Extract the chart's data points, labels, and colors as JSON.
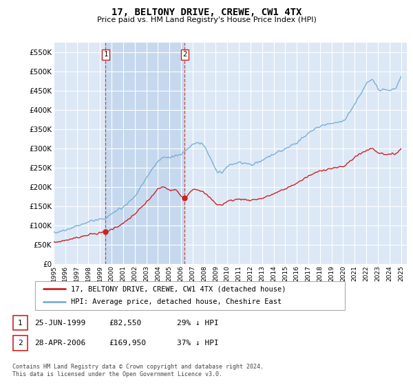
{
  "title": "17, BELTONY DRIVE, CREWE, CW1 4TX",
  "subtitle": "Price paid vs. HM Land Registry's House Price Index (HPI)",
  "ylim": [
    0,
    575000
  ],
  "yticks": [
    0,
    50000,
    100000,
    150000,
    200000,
    250000,
    300000,
    350000,
    400000,
    450000,
    500000,
    550000
  ],
  "ytick_labels": [
    "£0",
    "£50K",
    "£100K",
    "£150K",
    "£200K",
    "£250K",
    "£300K",
    "£350K",
    "£400K",
    "£450K",
    "£500K",
    "£550K"
  ],
  "xlim": [
    1995.0,
    2025.5
  ],
  "plot_bg_color": "#dce8f5",
  "grid_color": "#ffffff",
  "hpi_color": "#7bafd4",
  "price_color": "#cc2222",
  "vline_color": "#cc3333",
  "shade_color": "#c5d8ee",
  "sale1_year": 1999.48,
  "sale2_year": 2006.32,
  "sale1_price": 82550,
  "sale2_price": 169950,
  "legend_line1": "17, BELTONY DRIVE, CREWE, CW1 4TX (detached house)",
  "legend_line2": "HPI: Average price, detached house, Cheshire East",
  "note1_num": "1",
  "note1_date": "25-JUN-1999",
  "note1_price": "£82,550",
  "note1_hpi": "29% ↓ HPI",
  "note2_num": "2",
  "note2_date": "28-APR-2006",
  "note2_price": "£169,950",
  "note2_hpi": "37% ↓ HPI",
  "footer": "Contains HM Land Registry data © Crown copyright and database right 2024.\nThis data is licensed under the Open Government Licence v3.0."
}
